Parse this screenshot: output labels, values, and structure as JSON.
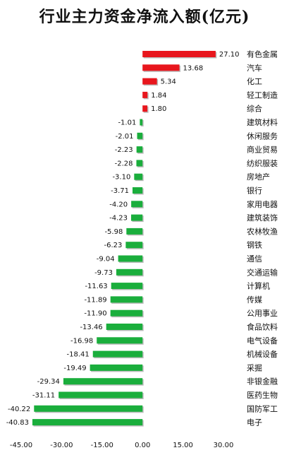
{
  "chart_data": {
    "type": "bar",
    "orientation": "horizontal",
    "title": "行业主力资金净流入额(亿元)",
    "categories": [
      "有色金属",
      "汽车",
      "化工",
      "轻工制造",
      "综合",
      "建筑材料",
      "休闲服务",
      "商业贸易",
      "纺织服装",
      "房地产",
      "银行",
      "家用电器",
      "建筑装饰",
      "农林牧渔",
      "钢铁",
      "通信",
      "交通运输",
      "计算机",
      "传媒",
      "公用事业",
      "食品饮料",
      "电气设备",
      "机械设备",
      "采掘",
      "非银金融",
      "医药生物",
      "国防军工",
      "电子"
    ],
    "values": [
      27.1,
      13.68,
      5.34,
      1.84,
      1.8,
      -1.01,
      -2.01,
      -2.23,
      -2.28,
      -3.1,
      -3.71,
      -4.2,
      -4.23,
      -5.98,
      -6.23,
      -9.04,
      -9.73,
      -11.63,
      -11.89,
      -11.9,
      -13.46,
      -16.98,
      -18.41,
      -19.49,
      -29.34,
      -31.11,
      -40.22,
      -40.83
    ],
    "value_labels": [
      "27.10",
      "13.68",
      "5.34",
      "1.84",
      "1.80",
      "-1.01",
      "-2.01",
      "-2.23",
      "-2.28",
      "-3.10",
      "-3.71",
      "-4.20",
      "-4.23",
      "-5.98",
      "-6.23",
      "-9.04",
      "-9.73",
      "-11.63",
      "-11.89",
      "-11.90",
      "-13.46",
      "-16.98",
      "-18.41",
      "-19.49",
      "-29.34",
      "-31.11",
      "-40.22",
      "-40.83"
    ],
    "xlim": [
      -45,
      30
    ],
    "xticks": [
      "-45.00",
      "-30.00",
      "-15.00",
      "0.00",
      "15.00",
      "30.00"
    ],
    "xtick_values": [
      -45,
      -30,
      -15,
      0,
      15,
      30
    ],
    "colors": {
      "positive": "#e8161d",
      "negative": "#1aae3c"
    },
    "grid": false
  }
}
